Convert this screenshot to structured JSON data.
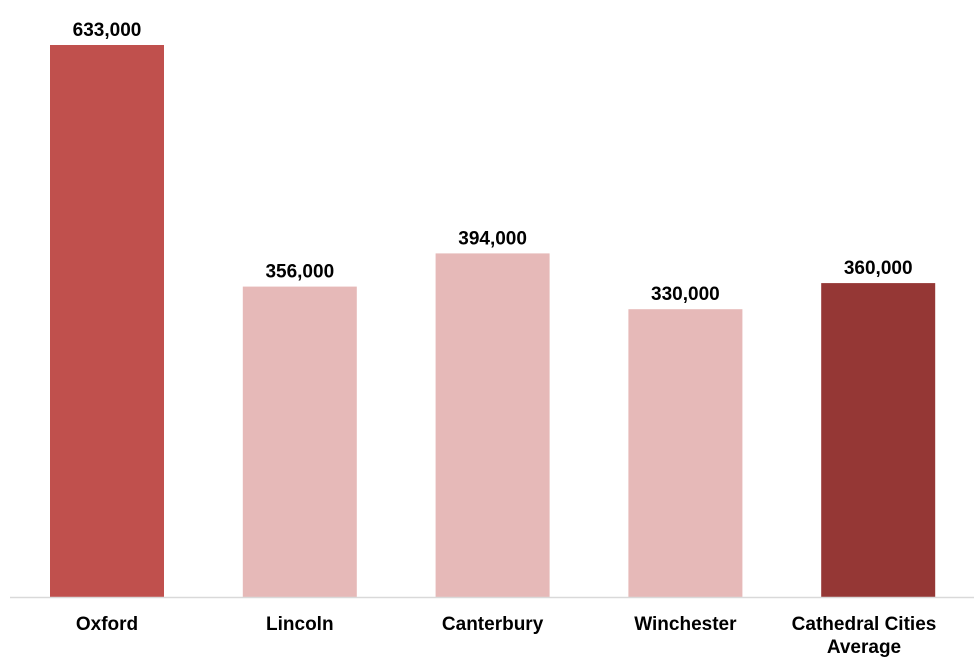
{
  "chart_data": {
    "type": "bar",
    "title": "",
    "xlabel": "",
    "ylabel": "",
    "categories": [
      "Oxford",
      "Lincoln",
      "Canterbury",
      "Winchester",
      "Cathedral Cities Average"
    ],
    "values": [
      633000,
      356000,
      394000,
      330000,
      360000
    ],
    "value_labels": [
      "633,000",
      "356,000",
      "394,000",
      "330,000",
      "360,000"
    ],
    "ylim": [
      0,
      633000
    ],
    "grid": false,
    "legend": "none",
    "colors": {
      "highlight": "#c0504d",
      "comparison": "#e6b9b8",
      "average": "#953735",
      "axis": "#d9d9d9"
    },
    "bar_colors": [
      "#c0504d",
      "#e6b9b8",
      "#e6b9b8",
      "#e6b9b8",
      "#953735"
    ]
  }
}
